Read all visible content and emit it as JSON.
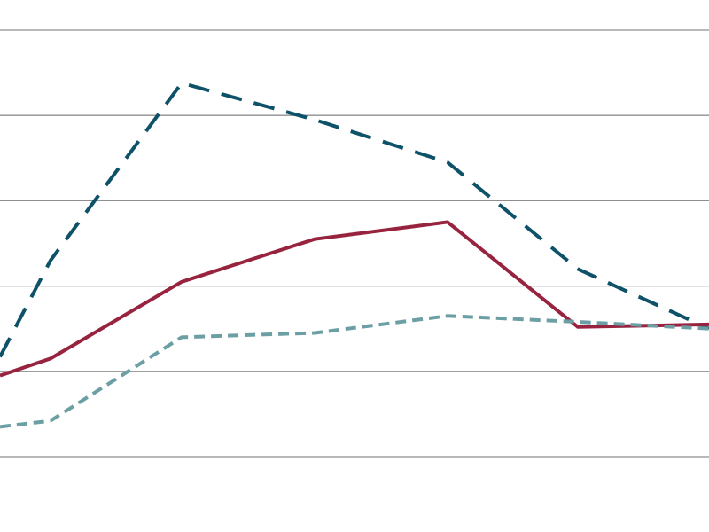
{
  "chart_data": {
    "type": "line",
    "title": "",
    "xlabel": "",
    "ylabel": "",
    "grid": true,
    "legend": "none",
    "x": [
      0,
      1,
      2,
      3,
      4,
      5,
      6
    ],
    "ylim": [
      0,
      5
    ],
    "gridlines": [
      0,
      1,
      2,
      3,
      4,
      5
    ],
    "series": [
      {
        "color": "#0d5268",
        "dash": "long-dash",
        "values": [
          1.17,
          2.3,
          4.38,
          3.95,
          3.45,
          2.2,
          1.5
        ]
      },
      {
        "color": "#97233f",
        "dash": "solid",
        "values": [
          0.95,
          1.15,
          2.05,
          2.55,
          2.75,
          1.52,
          1.55
        ]
      },
      {
        "color": "#6b9fa3",
        "dash": "short-dash",
        "values": [
          0.35,
          0.42,
          1.4,
          1.45,
          1.65,
          1.58,
          1.5
        ]
      }
    ]
  }
}
